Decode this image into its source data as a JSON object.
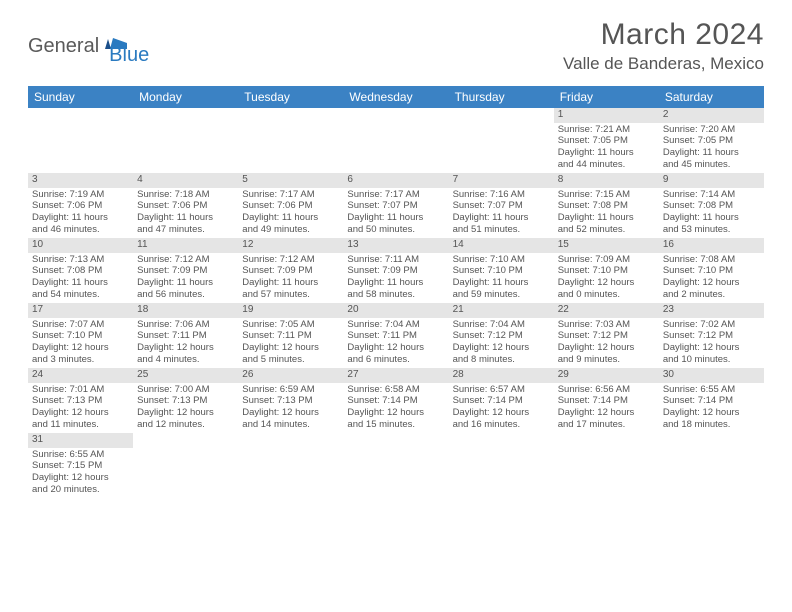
{
  "logo": {
    "text1": "General",
    "text2": "Blue"
  },
  "title": "March 2024",
  "location": "Valle de Banderas, Mexico",
  "weekdays": [
    "Sunday",
    "Monday",
    "Tuesday",
    "Wednesday",
    "Thursday",
    "Friday",
    "Saturday"
  ],
  "colors": {
    "header_bg": "#3b82c4",
    "header_text": "#ffffff",
    "daynum_bg": "#e5e5e5",
    "text": "#555555",
    "logo_blue": "#2a7ac0"
  },
  "rows": [
    [
      null,
      null,
      null,
      null,
      null,
      {
        "n": "1",
        "sr": "Sunrise: 7:21 AM",
        "ss": "Sunset: 7:05 PM",
        "d1": "Daylight: 11 hours",
        "d2": "and 44 minutes."
      },
      {
        "n": "2",
        "sr": "Sunrise: 7:20 AM",
        "ss": "Sunset: 7:05 PM",
        "d1": "Daylight: 11 hours",
        "d2": "and 45 minutes."
      }
    ],
    [
      {
        "n": "3",
        "sr": "Sunrise: 7:19 AM",
        "ss": "Sunset: 7:06 PM",
        "d1": "Daylight: 11 hours",
        "d2": "and 46 minutes."
      },
      {
        "n": "4",
        "sr": "Sunrise: 7:18 AM",
        "ss": "Sunset: 7:06 PM",
        "d1": "Daylight: 11 hours",
        "d2": "and 47 minutes."
      },
      {
        "n": "5",
        "sr": "Sunrise: 7:17 AM",
        "ss": "Sunset: 7:06 PM",
        "d1": "Daylight: 11 hours",
        "d2": "and 49 minutes."
      },
      {
        "n": "6",
        "sr": "Sunrise: 7:17 AM",
        "ss": "Sunset: 7:07 PM",
        "d1": "Daylight: 11 hours",
        "d2": "and 50 minutes."
      },
      {
        "n": "7",
        "sr": "Sunrise: 7:16 AM",
        "ss": "Sunset: 7:07 PM",
        "d1": "Daylight: 11 hours",
        "d2": "and 51 minutes."
      },
      {
        "n": "8",
        "sr": "Sunrise: 7:15 AM",
        "ss": "Sunset: 7:08 PM",
        "d1": "Daylight: 11 hours",
        "d2": "and 52 minutes."
      },
      {
        "n": "9",
        "sr": "Sunrise: 7:14 AM",
        "ss": "Sunset: 7:08 PM",
        "d1": "Daylight: 11 hours",
        "d2": "and 53 minutes."
      }
    ],
    [
      {
        "n": "10",
        "sr": "Sunrise: 7:13 AM",
        "ss": "Sunset: 7:08 PM",
        "d1": "Daylight: 11 hours",
        "d2": "and 54 minutes."
      },
      {
        "n": "11",
        "sr": "Sunrise: 7:12 AM",
        "ss": "Sunset: 7:09 PM",
        "d1": "Daylight: 11 hours",
        "d2": "and 56 minutes."
      },
      {
        "n": "12",
        "sr": "Sunrise: 7:12 AM",
        "ss": "Sunset: 7:09 PM",
        "d1": "Daylight: 11 hours",
        "d2": "and 57 minutes."
      },
      {
        "n": "13",
        "sr": "Sunrise: 7:11 AM",
        "ss": "Sunset: 7:09 PM",
        "d1": "Daylight: 11 hours",
        "d2": "and 58 minutes."
      },
      {
        "n": "14",
        "sr": "Sunrise: 7:10 AM",
        "ss": "Sunset: 7:10 PM",
        "d1": "Daylight: 11 hours",
        "d2": "and 59 minutes."
      },
      {
        "n": "15",
        "sr": "Sunrise: 7:09 AM",
        "ss": "Sunset: 7:10 PM",
        "d1": "Daylight: 12 hours",
        "d2": "and 0 minutes."
      },
      {
        "n": "16",
        "sr": "Sunrise: 7:08 AM",
        "ss": "Sunset: 7:10 PM",
        "d1": "Daylight: 12 hours",
        "d2": "and 2 minutes."
      }
    ],
    [
      {
        "n": "17",
        "sr": "Sunrise: 7:07 AM",
        "ss": "Sunset: 7:10 PM",
        "d1": "Daylight: 12 hours",
        "d2": "and 3 minutes."
      },
      {
        "n": "18",
        "sr": "Sunrise: 7:06 AM",
        "ss": "Sunset: 7:11 PM",
        "d1": "Daylight: 12 hours",
        "d2": "and 4 minutes."
      },
      {
        "n": "19",
        "sr": "Sunrise: 7:05 AM",
        "ss": "Sunset: 7:11 PM",
        "d1": "Daylight: 12 hours",
        "d2": "and 5 minutes."
      },
      {
        "n": "20",
        "sr": "Sunrise: 7:04 AM",
        "ss": "Sunset: 7:11 PM",
        "d1": "Daylight: 12 hours",
        "d2": "and 6 minutes."
      },
      {
        "n": "21",
        "sr": "Sunrise: 7:04 AM",
        "ss": "Sunset: 7:12 PM",
        "d1": "Daylight: 12 hours",
        "d2": "and 8 minutes."
      },
      {
        "n": "22",
        "sr": "Sunrise: 7:03 AM",
        "ss": "Sunset: 7:12 PM",
        "d1": "Daylight: 12 hours",
        "d2": "and 9 minutes."
      },
      {
        "n": "23",
        "sr": "Sunrise: 7:02 AM",
        "ss": "Sunset: 7:12 PM",
        "d1": "Daylight: 12 hours",
        "d2": "and 10 minutes."
      }
    ],
    [
      {
        "n": "24",
        "sr": "Sunrise: 7:01 AM",
        "ss": "Sunset: 7:13 PM",
        "d1": "Daylight: 12 hours",
        "d2": "and 11 minutes."
      },
      {
        "n": "25",
        "sr": "Sunrise: 7:00 AM",
        "ss": "Sunset: 7:13 PM",
        "d1": "Daylight: 12 hours",
        "d2": "and 12 minutes."
      },
      {
        "n": "26",
        "sr": "Sunrise: 6:59 AM",
        "ss": "Sunset: 7:13 PM",
        "d1": "Daylight: 12 hours",
        "d2": "and 14 minutes."
      },
      {
        "n": "27",
        "sr": "Sunrise: 6:58 AM",
        "ss": "Sunset: 7:14 PM",
        "d1": "Daylight: 12 hours",
        "d2": "and 15 minutes."
      },
      {
        "n": "28",
        "sr": "Sunrise: 6:57 AM",
        "ss": "Sunset: 7:14 PM",
        "d1": "Daylight: 12 hours",
        "d2": "and 16 minutes."
      },
      {
        "n": "29",
        "sr": "Sunrise: 6:56 AM",
        "ss": "Sunset: 7:14 PM",
        "d1": "Daylight: 12 hours",
        "d2": "and 17 minutes."
      },
      {
        "n": "30",
        "sr": "Sunrise: 6:55 AM",
        "ss": "Sunset: 7:14 PM",
        "d1": "Daylight: 12 hours",
        "d2": "and 18 minutes."
      }
    ],
    [
      {
        "n": "31",
        "sr": "Sunrise: 6:55 AM",
        "ss": "Sunset: 7:15 PM",
        "d1": "Daylight: 12 hours",
        "d2": "and 20 minutes."
      },
      null,
      null,
      null,
      null,
      null,
      null
    ]
  ]
}
